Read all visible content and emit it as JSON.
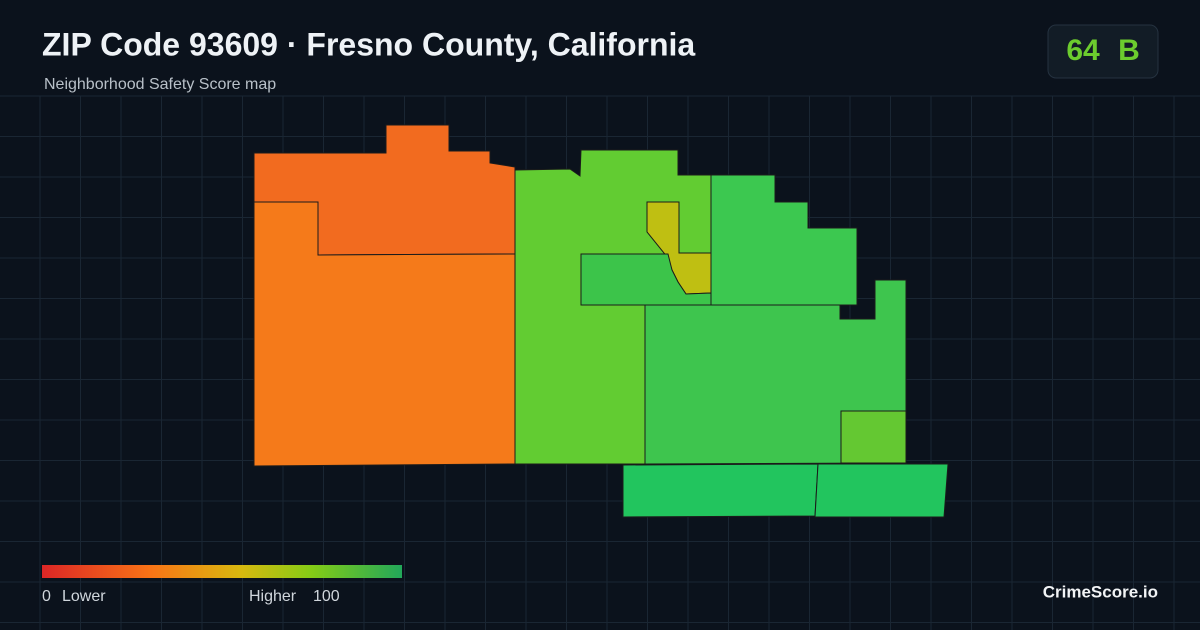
{
  "header": {
    "title": "ZIP Code 93609 · Fresno County, California",
    "subtitle": "Neighborhood Safety Score map"
  },
  "badge": {
    "score": "64",
    "grade": "B"
  },
  "legend": {
    "min": "0",
    "min_label": "Lower",
    "max_label": "Higher",
    "max": "100"
  },
  "footer": {
    "brand": "CrimeScore.io"
  }
}
